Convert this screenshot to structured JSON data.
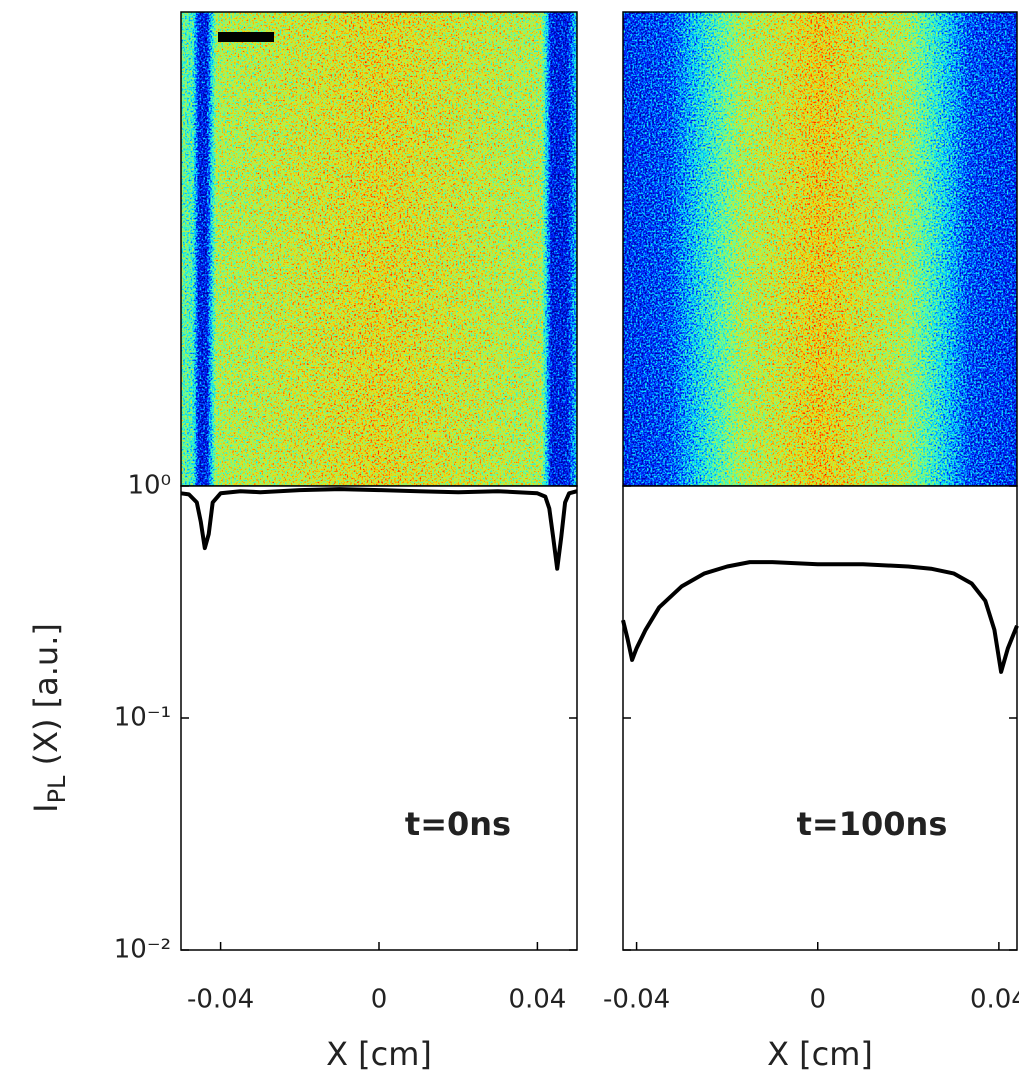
{
  "chart_data": [
    {
      "type": "line",
      "log_y": true,
      "annotation": "t=0ns",
      "xlabel": "X [cm]",
      "ylabel": "I_PL (X) [a.u.]",
      "show_ytick_labels": true,
      "xlim": [
        -0.05,
        0.05
      ],
      "xticks": [
        -0.04,
        0,
        0.04
      ],
      "ylim": [
        0.01,
        1
      ],
      "yticks": [
        {
          "value": 0.01,
          "label": "10⁻²"
        },
        {
          "value": 0.1,
          "label": "10⁻¹"
        },
        {
          "value": 1,
          "label": "10⁰"
        }
      ],
      "series": [
        {
          "color": "#000000",
          "x": [
            -0.05,
            -0.048,
            -0.046,
            -0.045,
            -0.044,
            -0.043,
            -0.042,
            -0.04,
            -0.035,
            -0.03,
            -0.02,
            -0.01,
            0,
            0.01,
            0.02,
            0.03,
            0.035,
            0.04,
            0.042,
            0.043,
            0.044,
            0.045,
            0.046,
            0.047,
            0.048,
            0.05
          ],
          "values": [
            0.93,
            0.92,
            0.85,
            0.7,
            0.54,
            0.62,
            0.85,
            0.93,
            0.95,
            0.94,
            0.96,
            0.97,
            0.96,
            0.95,
            0.94,
            0.95,
            0.94,
            0.93,
            0.9,
            0.8,
            0.6,
            0.44,
            0.6,
            0.85,
            0.93,
            0.95
          ]
        }
      ]
    },
    {
      "type": "line",
      "log_y": true,
      "annotation": "t=100ns",
      "xlabel": "X [cm]",
      "show_ytick_labels": false,
      "xlim": [
        -0.043,
        0.044
      ],
      "xticks": [
        -0.04,
        0,
        0.04
      ],
      "ylim": [
        0.01,
        1
      ],
      "yticks": [
        {
          "value": 0.01,
          "label": "10⁻²"
        },
        {
          "value": 0.1,
          "label": "10⁻¹"
        },
        {
          "value": 1,
          "label": "10⁰"
        }
      ],
      "series": [
        {
          "color": "#000000",
          "x": [
            -0.043,
            -0.042,
            -0.041,
            -0.04,
            -0.038,
            -0.035,
            -0.03,
            -0.025,
            -0.02,
            -0.015,
            -0.01,
            0,
            0.01,
            0.02,
            0.025,
            0.03,
            0.034,
            0.037,
            0.039,
            0.0405,
            0.042,
            0.044
          ],
          "values": [
            0.264,
            0.22,
            0.178,
            0.2,
            0.24,
            0.3,
            0.37,
            0.42,
            0.45,
            0.47,
            0.47,
            0.46,
            0.46,
            0.45,
            0.44,
            0.42,
            0.38,
            0.32,
            0.24,
            0.158,
            0.2,
            0.25
          ]
        }
      ]
    }
  ]
}
